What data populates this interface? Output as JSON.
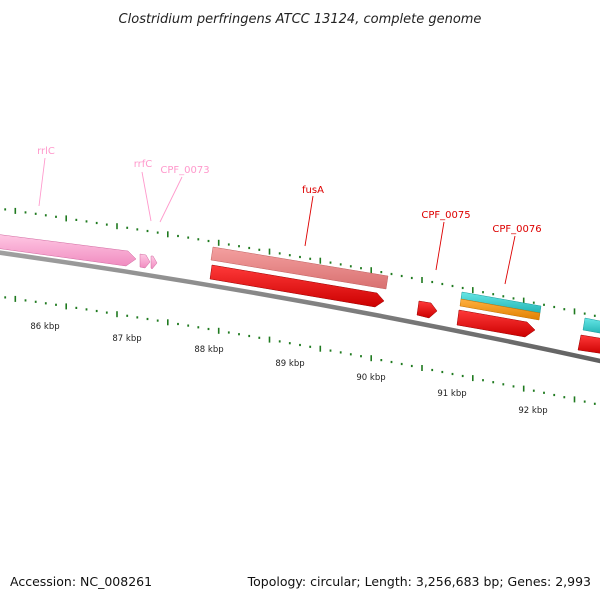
{
  "title": "Clostridium perfringens ATCC 13124, complete genome",
  "footer": {
    "accession": "Accession: NC_008261",
    "summary": "Topology: circular; Length: 3,256,683 bp; Genes: 2,993"
  },
  "colors": {
    "backbone": "#7f7f7f",
    "tick": "#1f7a1f",
    "rrna": "#ff99cc",
    "rrna_label": "#ff99cc",
    "gene_label": "#dd0000",
    "cds": "#ff0000",
    "cds_salmon": "#e88080",
    "cyan": "#33cccc",
    "orange": "#ff9900"
  },
  "kbp_labels": [
    "86 kbp",
    "87 kbp",
    "88 kbp",
    "89 kbp",
    "90 kbp",
    "91 kbp",
    "92 kbp"
  ],
  "gene_labels": [
    {
      "id": "rrlC-1",
      "text": "rrlC",
      "color": "#ff99cc"
    },
    {
      "id": "rrfC",
      "text": "rrfC",
      "color": "#ff99cc"
    },
    {
      "id": "CPF_0073",
      "text": "CPF_0073",
      "color": "#ff99cc"
    },
    {
      "id": "fusA",
      "text": "fusA",
      "color": "#dd0000"
    },
    {
      "id": "CPF_0075",
      "text": "CPF_0075",
      "color": "#dd0000"
    },
    {
      "id": "CPF_0076",
      "text": "CPF_0076",
      "color": "#dd0000"
    }
  ]
}
